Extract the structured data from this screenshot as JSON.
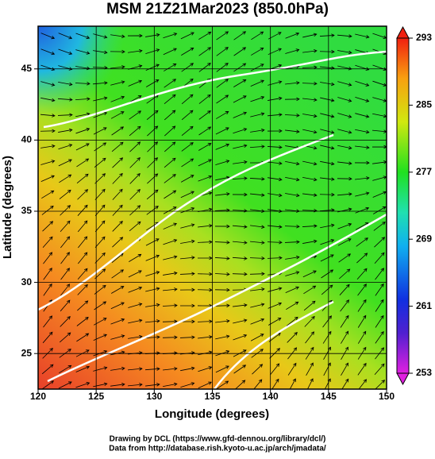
{
  "title": "MSM 21Z21Mar2023 (850.0hPa)",
  "map": {
    "xlabel": "Longitude (degrees)",
    "ylabel": "Latitude  (degrees)",
    "xlim": [
      120,
      150
    ],
    "ylim": [
      22.5,
      48
    ],
    "xticks": [
      120,
      125,
      130,
      135,
      140,
      145,
      150
    ],
    "yticks": [
      25,
      30,
      35,
      40,
      45
    ]
  },
  "colorbar": {
    "clim": [
      253,
      293
    ],
    "ticks": [
      253,
      261,
      269,
      277,
      285,
      293
    ]
  },
  "footer": [
    "Drawing by DCL (https://www.gfd-dennou.org/library/dcl/)",
    "Data from http://database.rish.kyoto-u.ac.jp/arch/jmadata/"
  ]
}
